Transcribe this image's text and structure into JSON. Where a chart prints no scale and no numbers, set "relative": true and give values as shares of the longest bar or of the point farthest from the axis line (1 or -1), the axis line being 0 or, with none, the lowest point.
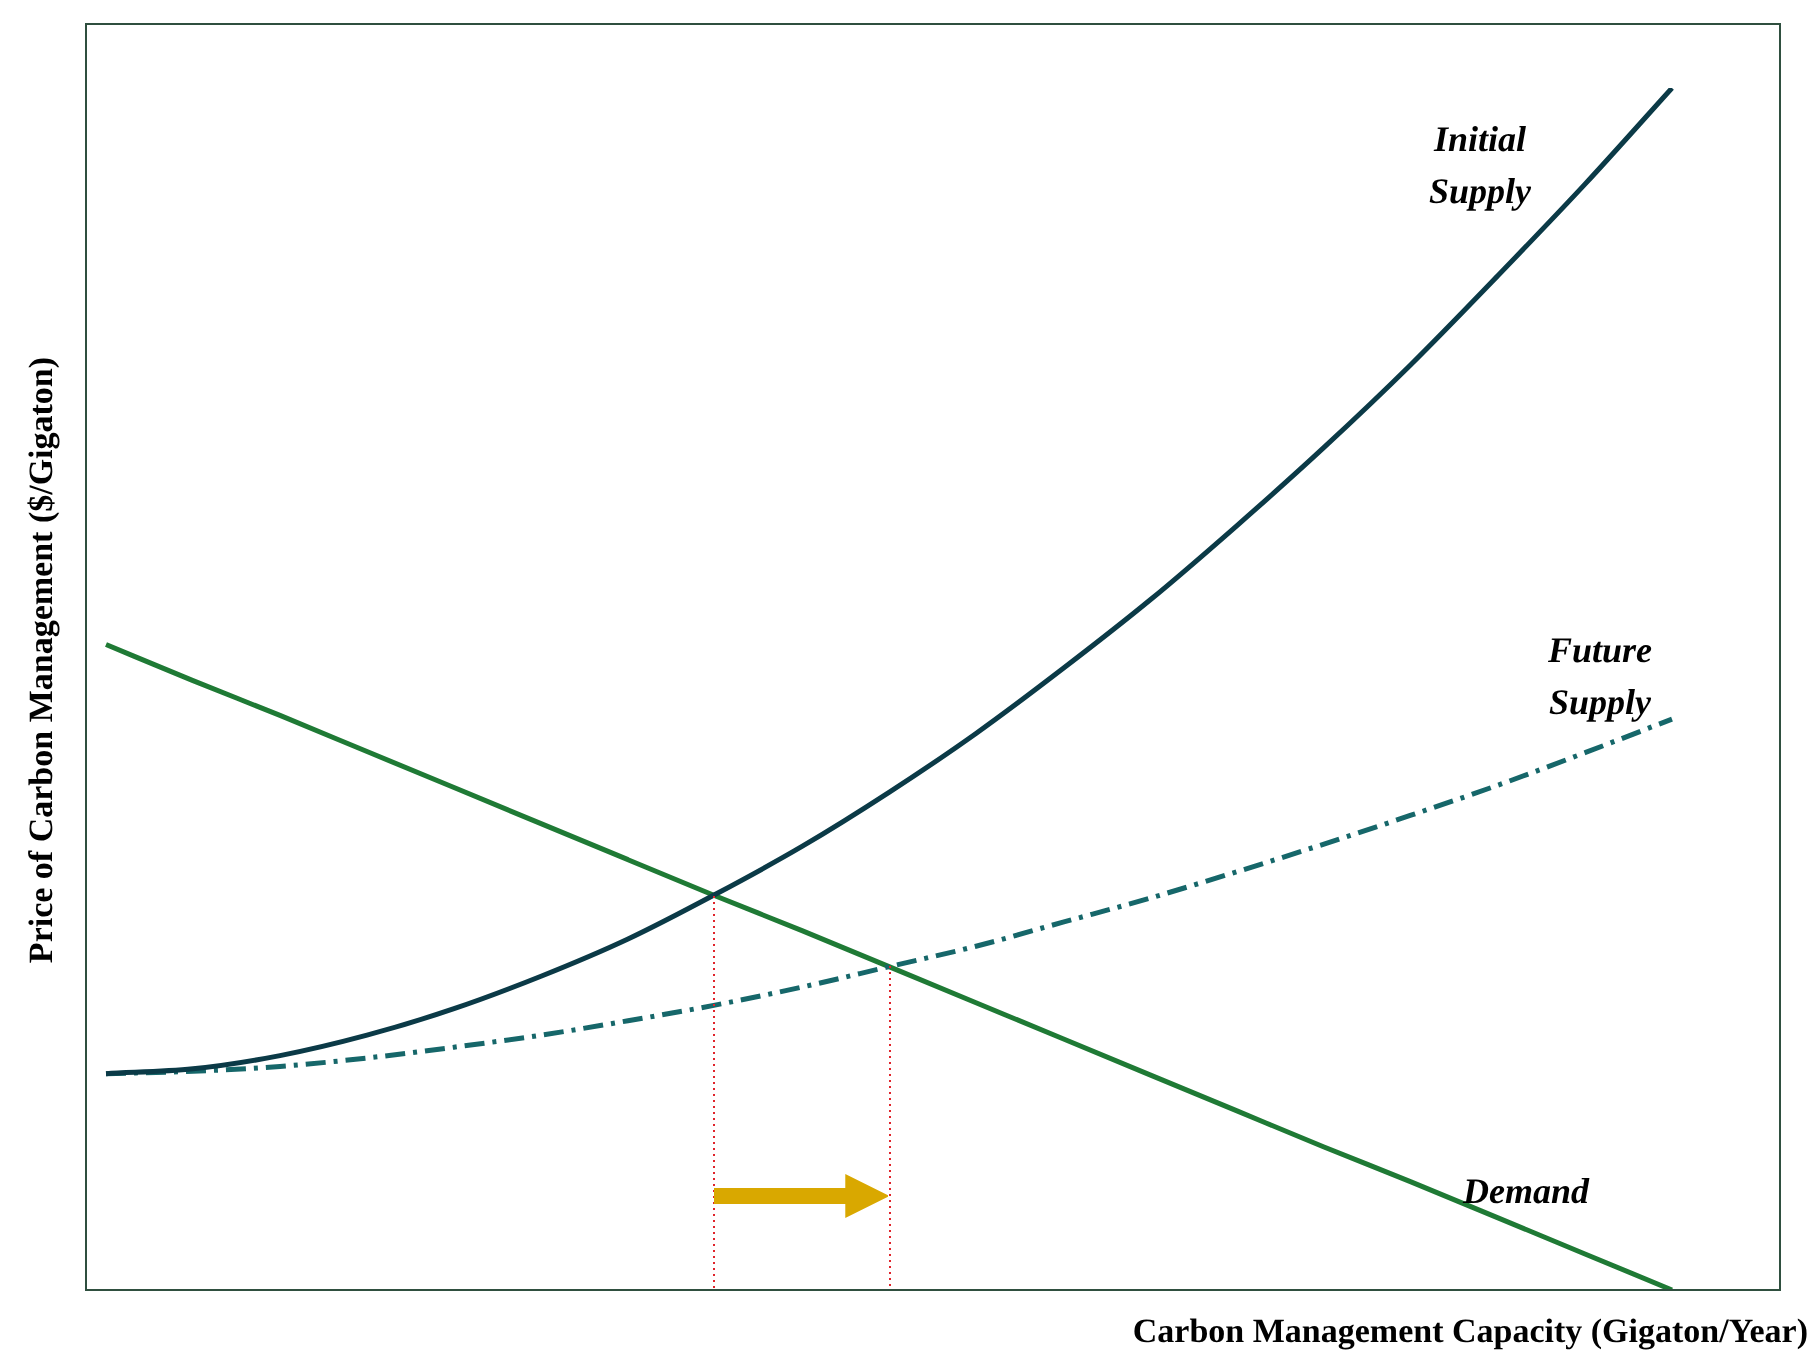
{
  "chart_data": {
    "type": "line",
    "relative": true,
    "xlabel": "Carbon Management Capacity (Gigaton/Year)",
    "ylabel": "Price of Carbon Management ($/Gigaton)",
    "categories": [
      null,
      null,
      null,
      null,
      null,
      null,
      null,
      null,
      null,
      null,
      null,
      null,
      null,
      null,
      null,
      null,
      null,
      null,
      null
    ],
    "series": [
      {
        "name": "Initial Supply",
        "color": "#0b3a47",
        "line_style": "solid",
        "values": [
          0.18,
          0.184,
          0.195,
          0.212,
          0.234,
          0.261,
          0.292,
          0.329,
          0.369,
          0.414,
          0.463,
          0.517,
          0.574,
          0.636,
          0.701,
          0.77,
          0.844,
          0.92,
          1.0
        ]
      },
      {
        "name": "Future Supply",
        "color": "#16676a",
        "line_style": "dashed",
        "values": [
          0.18,
          0.182,
          0.186,
          0.193,
          0.202,
          0.212,
          0.224,
          0.237,
          0.252,
          0.269,
          0.286,
          0.306,
          0.326,
          0.348,
          0.371,
          0.395,
          0.42,
          0.447,
          0.475
        ]
      },
      {
        "name": "Demand",
        "color": "#1f7a35",
        "line_style": "solid",
        "values": [
          0.537,
          0.507,
          0.478,
          0.448,
          0.418,
          0.388,
          0.358,
          0.328,
          0.299,
          0.269,
          0.239,
          0.209,
          0.179,
          0.149,
          0.119,
          0.09,
          0.06,
          0.03,
          0.0
        ]
      }
    ],
    "grid": false,
    "legend": false,
    "marker": "none"
  }
}
